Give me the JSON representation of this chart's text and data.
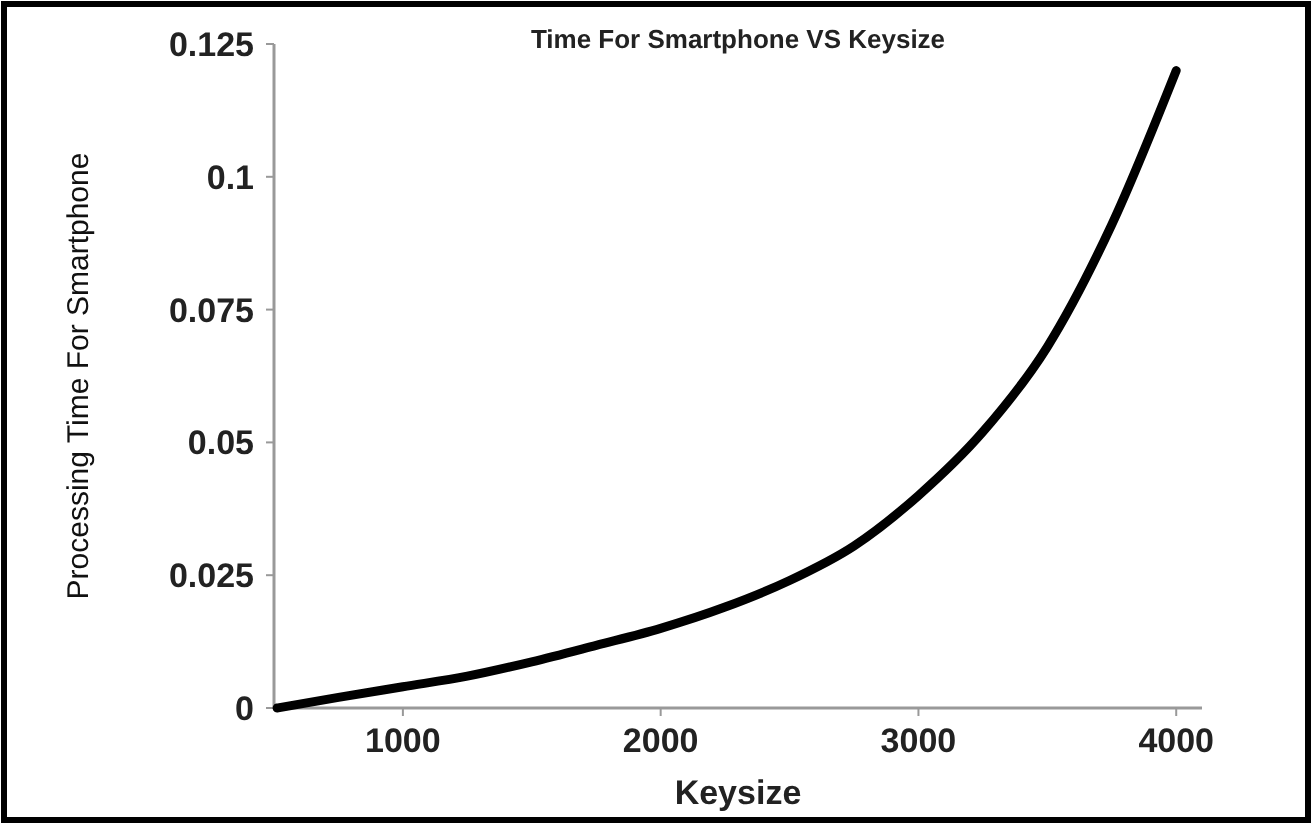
{
  "chart_data": {
    "type": "line",
    "title": "Time For Smartphone VS Keysize",
    "xlabel": "Keysize",
    "ylabel": "Processing Time For Smartphone",
    "x": [
      512,
      750,
      1000,
      1250,
      1500,
      1750,
      2000,
      2250,
      2500,
      2750,
      3000,
      3250,
      3500,
      3750,
      4000
    ],
    "series": [
      {
        "color": "#000000",
        "values": [
          0,
          0.002,
          0.004,
          0.006,
          0.0087,
          0.0118,
          0.015,
          0.019,
          0.024,
          0.0305,
          0.04,
          0.052,
          0.068,
          0.091,
          0.12
        ]
      }
    ],
    "xlim": [
      500,
      4100
    ],
    "xticks": [
      1000,
      2000,
      3000,
      4000
    ],
    "ylim": [
      0,
      0.125
    ],
    "yticks": [
      0,
      0.025,
      0.05,
      0.075,
      0.1,
      0.125
    ],
    "grid": false,
    "marker": "none",
    "line_style": "solid"
  }
}
